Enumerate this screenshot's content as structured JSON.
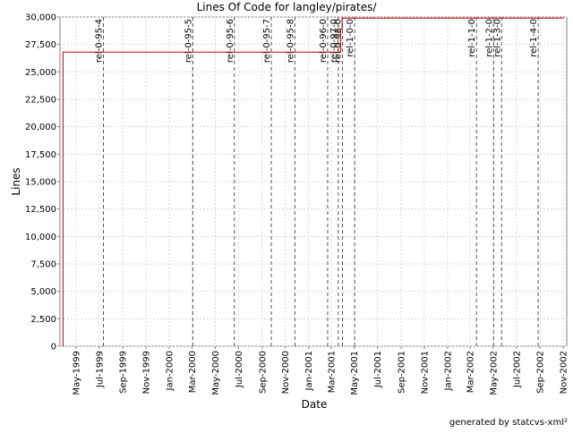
{
  "chart_data": {
    "type": "line",
    "title": "Lines Of Code for langley/pirates/",
    "xlabel": "Date",
    "ylabel": "Lines",
    "ylim": [
      0,
      30000
    ],
    "xlim": [
      "1999-03-20",
      "2002-11-10"
    ],
    "grid": true,
    "legend": "none",
    "line_color": "#cc0000",
    "tag_line_color": "#555555",
    "y_ticks": [
      {
        "value": 0,
        "label": "0"
      },
      {
        "value": 2500,
        "label": "2,500"
      },
      {
        "value": 5000,
        "label": "5,000"
      },
      {
        "value": 7500,
        "label": "7,500"
      },
      {
        "value": 10000,
        "label": "10,000"
      },
      {
        "value": 12500,
        "label": "12,500"
      },
      {
        "value": 15000,
        "label": "15,000"
      },
      {
        "value": 17500,
        "label": "17,500"
      },
      {
        "value": 20000,
        "label": "20,000"
      },
      {
        "value": 22500,
        "label": "22,500"
      },
      {
        "value": 25000,
        "label": "25,000"
      },
      {
        "value": 27500,
        "label": "27,500"
      },
      {
        "value": 30000,
        "label": "30,000"
      }
    ],
    "x_ticks": [
      {
        "date": "1999-05-01",
        "label": "May-1999"
      },
      {
        "date": "1999-07-01",
        "label": "Jul-1999"
      },
      {
        "date": "1999-09-01",
        "label": "Sep-1999"
      },
      {
        "date": "1999-11-01",
        "label": "Nov-1999"
      },
      {
        "date": "2000-01-01",
        "label": "Jan-2000"
      },
      {
        "date": "2000-03-01",
        "label": "Mar-2000"
      },
      {
        "date": "2000-05-01",
        "label": "May-2000"
      },
      {
        "date": "2000-07-01",
        "label": "Jul-2000"
      },
      {
        "date": "2000-09-01",
        "label": "Sep-2000"
      },
      {
        "date": "2000-11-01",
        "label": "Nov-2000"
      },
      {
        "date": "2001-01-01",
        "label": "Jan-2001"
      },
      {
        "date": "2001-03-01",
        "label": "Mar-2001"
      },
      {
        "date": "2001-05-01",
        "label": "May-2001"
      },
      {
        "date": "2001-07-01",
        "label": "Jul-2001"
      },
      {
        "date": "2001-09-01",
        "label": "Sep-2001"
      },
      {
        "date": "2001-11-01",
        "label": "Nov-2001"
      },
      {
        "date": "2002-01-01",
        "label": "Jan-2002"
      },
      {
        "date": "2002-03-01",
        "label": "Mar-2002"
      },
      {
        "date": "2002-05-01",
        "label": "May-2002"
      },
      {
        "date": "2002-07-01",
        "label": "Jul-2002"
      },
      {
        "date": "2002-09-01",
        "label": "Sep-2002"
      },
      {
        "date": "2002-11-01",
        "label": "Nov-2002"
      }
    ],
    "series": [
      {
        "points": [
          {
            "x": "1999-03-28",
            "y": 0
          },
          {
            "x": "1999-03-28",
            "y": 26800
          },
          {
            "x": "2001-03-26",
            "y": 26800
          },
          {
            "x": "2001-03-26",
            "y": 28900
          },
          {
            "x": "2001-03-30",
            "y": 28900
          },
          {
            "x": "2001-03-30",
            "y": 29900
          },
          {
            "x": "2002-11-02",
            "y": 29900
          }
        ]
      }
    ],
    "tags": [
      {
        "date": "1999-07-12",
        "label": "rel-0-95-4"
      },
      {
        "date": "2000-03-03",
        "label": "rel-0-95-5"
      },
      {
        "date": "2000-06-20",
        "label": "rel-0-95-6"
      },
      {
        "date": "2000-09-25",
        "label": "rel-0-95-7"
      },
      {
        "date": "2000-11-26",
        "label": "rel-0-95-8"
      },
      {
        "date": "2001-02-20",
        "label": "rel-0-96-0"
      },
      {
        "date": "2001-03-20",
        "label": "rel-0-97-0"
      },
      {
        "date": "2001-03-31",
        "label": "rel-0-98-0"
      },
      {
        "date": "2001-05-02",
        "label": "rel-1-0-0"
      },
      {
        "date": "2002-03-18",
        "label": "rel-1-1-0"
      },
      {
        "date": "2002-05-02",
        "label": "rel-1-2-0"
      },
      {
        "date": "2002-05-23",
        "label": "rel-1-3-0"
      },
      {
        "date": "2002-08-27",
        "label": "rel-1-4-0"
      }
    ]
  },
  "footer": {
    "text": "generated by statcvs-xml²"
  }
}
